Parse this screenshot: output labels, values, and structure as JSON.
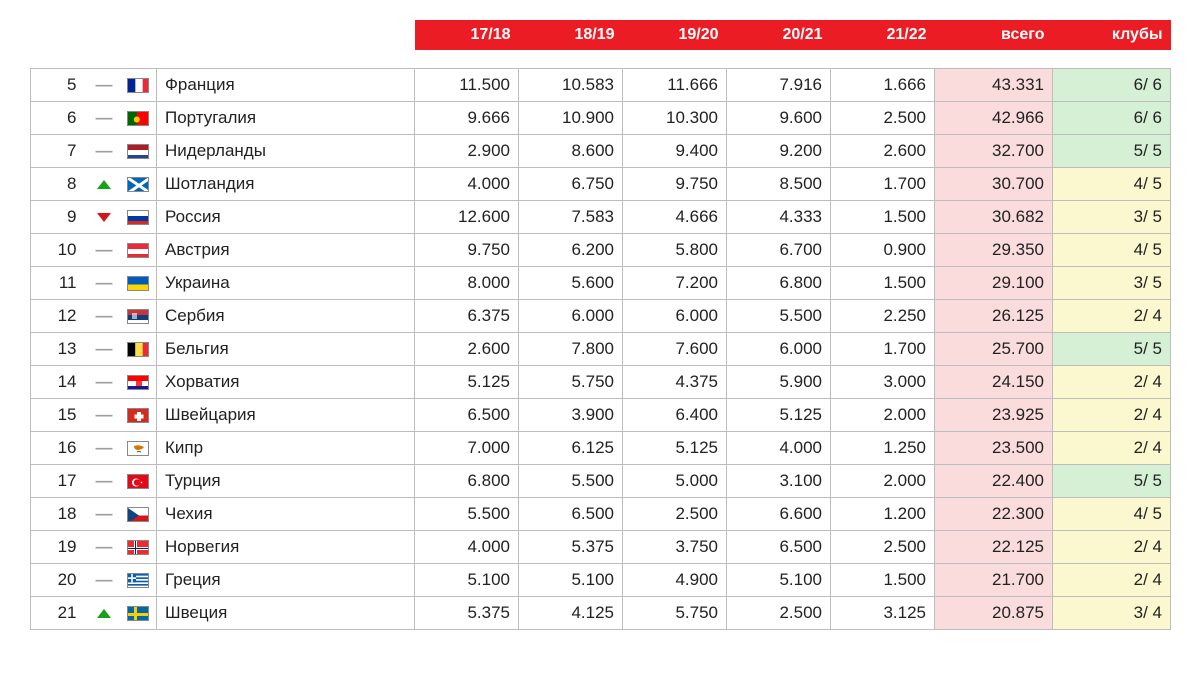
{
  "colors": {
    "header_bg": "#ec1c24",
    "header_fg": "#ffffff",
    "border": "#bdbdbd",
    "bg_green": "#d5f0d5",
    "bg_yellow": "#fbf8cf",
    "bg_pink": "#fbdcdc",
    "move_up": "#18a018",
    "move_down": "#d01818",
    "move_dash": "#9e9e9e"
  },
  "columns": {
    "s1": "17/18",
    "s2": "18/19",
    "s3": "19/20",
    "s4": "20/21",
    "s5": "21/22",
    "total": "всего",
    "clubs": "клубы"
  },
  "club_colors": {
    "green": "green",
    "yellow": "yellow"
  },
  "rows": [
    {
      "rank": "5",
      "move": "same",
      "flag": "fr",
      "country": "Франция",
      "s1": "11.500",
      "s2": "10.583",
      "s3": "11.666",
      "s4": "7.916",
      "s5": "1.666",
      "total": "43.331",
      "clubs": "6/ 6",
      "clubs_color": "green"
    },
    {
      "rank": "6",
      "move": "same",
      "flag": "pt",
      "country": "Португалия",
      "s1": "9.666",
      "s2": "10.900",
      "s3": "10.300",
      "s4": "9.600",
      "s5": "2.500",
      "total": "42.966",
      "clubs": "6/ 6",
      "clubs_color": "green"
    },
    {
      "rank": "7",
      "move": "same",
      "flag": "nl",
      "country": "Нидерланды",
      "s1": "2.900",
      "s2": "8.600",
      "s3": "9.400",
      "s4": "9.200",
      "s5": "2.600",
      "total": "32.700",
      "clubs": "5/ 5",
      "clubs_color": "green"
    },
    {
      "rank": "8",
      "move": "up",
      "flag": "sco",
      "country": "Шотландия",
      "s1": "4.000",
      "s2": "6.750",
      "s3": "9.750",
      "s4": "8.500",
      "s5": "1.700",
      "total": "30.700",
      "clubs": "4/ 5",
      "clubs_color": "yellow"
    },
    {
      "rank": "9",
      "move": "down",
      "flag": "ru",
      "country": "Россия",
      "s1": "12.600",
      "s2": "7.583",
      "s3": "4.666",
      "s4": "4.333",
      "s5": "1.500",
      "total": "30.682",
      "clubs": "3/ 5",
      "clubs_color": "yellow"
    },
    {
      "rank": "10",
      "move": "same",
      "flag": "at",
      "country": "Австрия",
      "s1": "9.750",
      "s2": "6.200",
      "s3": "5.800",
      "s4": "6.700",
      "s5": "0.900",
      "total": "29.350",
      "clubs": "4/ 5",
      "clubs_color": "yellow"
    },
    {
      "rank": "11",
      "move": "same",
      "flag": "ua",
      "country": "Украина",
      "s1": "8.000",
      "s2": "5.600",
      "s3": "7.200",
      "s4": "6.800",
      "s5": "1.500",
      "total": "29.100",
      "clubs": "3/ 5",
      "clubs_color": "yellow"
    },
    {
      "rank": "12",
      "move": "same",
      "flag": "rs",
      "country": "Сербия",
      "s1": "6.375",
      "s2": "6.000",
      "s3": "6.000",
      "s4": "5.500",
      "s5": "2.250",
      "total": "26.125",
      "clubs": "2/ 4",
      "clubs_color": "yellow"
    },
    {
      "rank": "13",
      "move": "same",
      "flag": "be",
      "country": "Бельгия",
      "s1": "2.600",
      "s2": "7.800",
      "s3": "7.600",
      "s4": "6.000",
      "s5": "1.700",
      "total": "25.700",
      "clubs": "5/ 5",
      "clubs_color": "green"
    },
    {
      "rank": "14",
      "move": "same",
      "flag": "hr",
      "country": "Хорватия",
      "s1": "5.125",
      "s2": "5.750",
      "s3": "4.375",
      "s4": "5.900",
      "s5": "3.000",
      "total": "24.150",
      "clubs": "2/ 4",
      "clubs_color": "yellow"
    },
    {
      "rank": "15",
      "move": "same",
      "flag": "ch",
      "country": "Швейцария",
      "s1": "6.500",
      "s2": "3.900",
      "s3": "6.400",
      "s4": "5.125",
      "s5": "2.000",
      "total": "23.925",
      "clubs": "2/ 4",
      "clubs_color": "yellow"
    },
    {
      "rank": "16",
      "move": "same",
      "flag": "cy",
      "country": "Кипр",
      "s1": "7.000",
      "s2": "6.125",
      "s3": "5.125",
      "s4": "4.000",
      "s5": "1.250",
      "total": "23.500",
      "clubs": "2/ 4",
      "clubs_color": "yellow"
    },
    {
      "rank": "17",
      "move": "same",
      "flag": "tr",
      "country": "Турция",
      "s1": "6.800",
      "s2": "5.500",
      "s3": "5.000",
      "s4": "3.100",
      "s5": "2.000",
      "total": "22.400",
      "clubs": "5/ 5",
      "clubs_color": "green"
    },
    {
      "rank": "18",
      "move": "same",
      "flag": "cz",
      "country": "Чехия",
      "s1": "5.500",
      "s2": "6.500",
      "s3": "2.500",
      "s4": "6.600",
      "s5": "1.200",
      "total": "22.300",
      "clubs": "4/ 5",
      "clubs_color": "yellow"
    },
    {
      "rank": "19",
      "move": "same",
      "flag": "no",
      "country": "Норвегия",
      "s1": "4.000",
      "s2": "5.375",
      "s3": "3.750",
      "s4": "6.500",
      "s5": "2.500",
      "total": "22.125",
      "clubs": "2/ 4",
      "clubs_color": "yellow"
    },
    {
      "rank": "20",
      "move": "same",
      "flag": "gr",
      "country": "Греция",
      "s1": "5.100",
      "s2": "5.100",
      "s3": "4.900",
      "s4": "5.100",
      "s5": "1.500",
      "total": "21.700",
      "clubs": "2/ 4",
      "clubs_color": "yellow"
    },
    {
      "rank": "21",
      "move": "up",
      "flag": "se",
      "country": "Швеция",
      "s1": "5.375",
      "s2": "4.125",
      "s3": "5.750",
      "s4": "2.500",
      "s5": "3.125",
      "total": "20.875",
      "clubs": "3/ 4",
      "clubs_color": "yellow"
    }
  ]
}
